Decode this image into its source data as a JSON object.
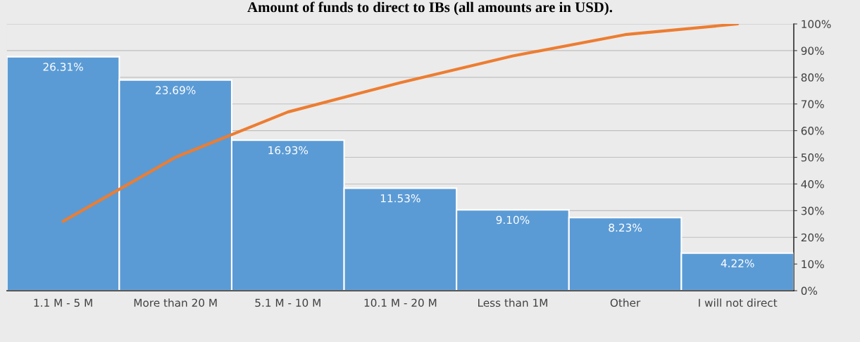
{
  "chart_data": {
    "type": "bar",
    "title": "Amount of funds to direct to IBs (all amounts are in USD).",
    "categories": [
      "1.1 M - 5 M",
      "More than 20 M",
      "5.1 M - 10 M",
      "10.1 M - 20 M",
      "Less than 1M",
      "Other",
      "I will not direct"
    ],
    "series": [
      {
        "color": "#5b9bd5",
        "values": [
          26.31,
          23.69,
          16.93,
          11.53,
          9.1,
          8.23,
          4.22
        ],
        "value_labels": [
          "26.31%",
          "23.69%",
          "16.93%",
          "11.53%",
          "9.10%",
          "8.23%",
          "4.22%"
        ]
      },
      {
        "type": "line",
        "axis": "y2",
        "color": "#ed7d31",
        "values": [
          26,
          50,
          67,
          78,
          88,
          96,
          100
        ]
      }
    ],
    "ylim": [
      0,
      30
    ],
    "y2lim": [
      0,
      100
    ],
    "y2ticks": [
      {
        "value": 0,
        "label": "0%"
      },
      {
        "value": 10,
        "label": "10%"
      },
      {
        "value": 20,
        "label": "20%"
      },
      {
        "value": 30,
        "label": "30%"
      },
      {
        "value": 40,
        "label": "40%"
      },
      {
        "value": 50,
        "label": "50%"
      },
      {
        "value": 60,
        "label": "60%"
      },
      {
        "value": 70,
        "label": "70%"
      },
      {
        "value": 80,
        "label": "80%"
      },
      {
        "value": 90,
        "label": "90%"
      },
      {
        "value": 100,
        "label": "100%"
      }
    ],
    "grid": "y",
    "legend": false,
    "marker": "none",
    "line_style": "solid"
  }
}
